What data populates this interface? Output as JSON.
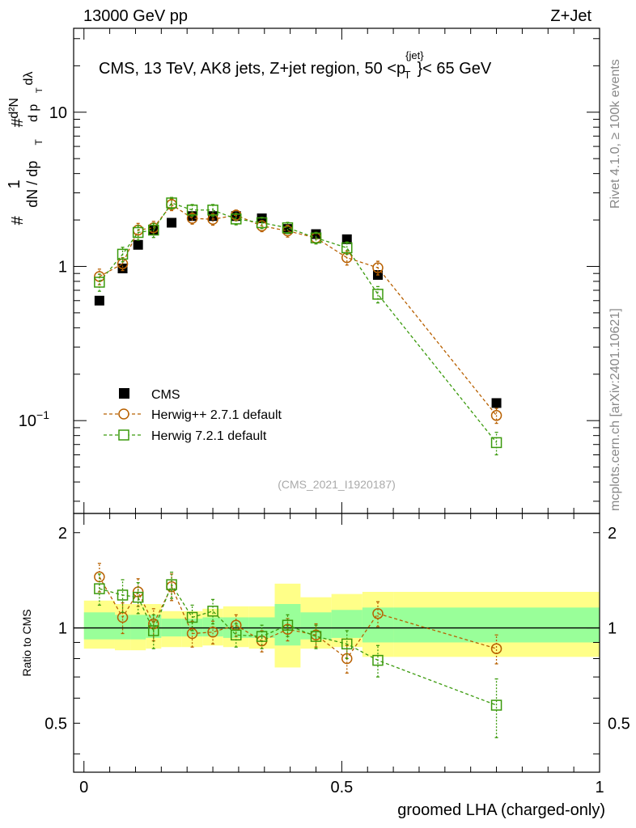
{
  "chart_data": {
    "type": "scatter",
    "header_left": "13000 GeV pp",
    "header_right": "Z+Jet",
    "title": "CMS, 13 TeV, AK8 jets, Z+jet region, 50 <p",
    "title_sup": "{jet}",
    "title_sub": "T",
    "title_tail": "}< 65 GeV",
    "analysis_id": "(CMS_2021_I1920187)",
    "side_rivet": "Rivet 4.1.0, ≥ 100k events",
    "side_mcplots": "mcplots.cern.ch [arXiv:2401.10621]",
    "xlabel": "groomed LHA (charged-only)",
    "ylabel_main": "(1/(dN/dp_T)) · d²N/(dp_T dλ)",
    "ylabel_ratio": "Ratio to CMS",
    "xlim": [
      -0.02,
      1.0
    ],
    "ylim_main": [
      0.025,
      35
    ],
    "ylim_ratio": [
      0.35,
      2.3
    ],
    "x_ticks": [
      {
        "v": 0,
        "label": "0"
      },
      {
        "v": 0.5,
        "label": "0.5"
      },
      {
        "v": 1,
        "label": "1"
      }
    ],
    "y_ticks_main": [
      {
        "v": 0.1,
        "label": "10",
        "sup": "−1"
      },
      {
        "v": 1,
        "label": "1",
        "sup": ""
      },
      {
        "v": 10,
        "label": "10",
        "sup": ""
      }
    ],
    "y_ticks_ratio": [
      {
        "v": 0.5,
        "label": "0.5"
      },
      {
        "v": 1,
        "label": "1"
      },
      {
        "v": 2,
        "label": "2"
      }
    ],
    "bins": [
      {
        "lo": 0.0,
        "hi": 0.06
      },
      {
        "lo": 0.06,
        "hi": 0.09
      },
      {
        "lo": 0.09,
        "hi": 0.12
      },
      {
        "lo": 0.12,
        "hi": 0.15
      },
      {
        "lo": 0.15,
        "hi": 0.19
      },
      {
        "lo": 0.19,
        "hi": 0.23
      },
      {
        "lo": 0.23,
        "hi": 0.27
      },
      {
        "lo": 0.27,
        "hi": 0.32
      },
      {
        "lo": 0.32,
        "hi": 0.37
      },
      {
        "lo": 0.37,
        "hi": 0.42
      },
      {
        "lo": 0.42,
        "hi": 0.48
      },
      {
        "lo": 0.48,
        "hi": 0.54
      },
      {
        "lo": 0.54,
        "hi": 0.6
      },
      {
        "lo": 0.6,
        "hi": 1.0
      }
    ],
    "band_outer": [
      1.22,
      1.19,
      1.19,
      1.19,
      1.13,
      1.13,
      1.15,
      1.17,
      1.17,
      1.38,
      1.25,
      1.28,
      1.3,
      1.3
    ],
    "band_outer_lo": [
      0.86,
      0.85,
      0.85,
      0.86,
      0.87,
      0.87,
      0.88,
      0.87,
      0.86,
      0.75,
      0.86,
      0.87,
      0.81,
      0.81
    ],
    "band_inner": [
      1.12,
      1.1,
      1.1,
      1.1,
      1.07,
      1.07,
      1.08,
      1.08,
      1.08,
      1.19,
      1.12,
      1.14,
      1.16,
      1.16
    ],
    "band_inner_lo": [
      0.92,
      0.92,
      0.92,
      0.93,
      0.94,
      0.94,
      0.94,
      0.93,
      0.93,
      0.88,
      0.92,
      0.93,
      0.9,
      0.9
    ],
    "series": [
      {
        "name": "CMS",
        "color": "#000000",
        "marker": "square-filled",
        "x": [
          0.03,
          0.075,
          0.105,
          0.135,
          0.17,
          0.21,
          0.25,
          0.295,
          0.345,
          0.395,
          0.45,
          0.51,
          0.57,
          0.8
        ],
        "y": [
          0.6,
          0.97,
          1.38,
          1.73,
          1.92,
          2.12,
          2.12,
          2.12,
          2.05,
          1.75,
          1.62,
          1.5,
          0.88,
          0.13
        ]
      },
      {
        "name": "Herwig++ 2.7.1 default",
        "color": "#b86000",
        "marker": "circle-open",
        "x": [
          0.03,
          0.075,
          0.105,
          0.135,
          0.17,
          0.21,
          0.25,
          0.295,
          0.345,
          0.395,
          0.45,
          0.51,
          0.57,
          0.8
        ],
        "y": [
          0.86,
          1.04,
          1.72,
          1.78,
          2.52,
          2.05,
          2.02,
          2.15,
          1.83,
          1.7,
          1.53,
          1.14,
          0.98,
          0.108
        ],
        "err": [
          0.1,
          0.1,
          0.18,
          0.18,
          0.22,
          0.17,
          0.17,
          0.17,
          0.15,
          0.15,
          0.13,
          0.12,
          0.1,
          0.012
        ],
        "ratio": [
          1.45,
          1.08,
          1.3,
          1.03,
          1.35,
          0.96,
          0.97,
          1.02,
          0.91,
          0.99,
          0.95,
          0.8,
          1.11,
          0.86
        ],
        "ratio_err": [
          0.15,
          0.12,
          0.13,
          0.12,
          0.13,
          0.09,
          0.08,
          0.08,
          0.07,
          0.08,
          0.08,
          0.08,
          0.1,
          0.09
        ]
      },
      {
        "name": "Herwig 7.2.1 default",
        "color": "#3a9a0c",
        "marker": "square-open",
        "x": [
          0.03,
          0.075,
          0.105,
          0.135,
          0.17,
          0.21,
          0.25,
          0.295,
          0.345,
          0.395,
          0.45,
          0.51,
          0.57,
          0.8
        ],
        "y": [
          0.79,
          1.2,
          1.66,
          1.72,
          2.58,
          2.32,
          2.32,
          2.03,
          1.92,
          1.78,
          1.53,
          1.32,
          0.66,
          0.072
        ],
        "err": [
          0.1,
          0.13,
          0.18,
          0.18,
          0.22,
          0.2,
          0.2,
          0.17,
          0.16,
          0.15,
          0.13,
          0.12,
          0.08,
          0.012
        ],
        "ratio": [
          1.33,
          1.27,
          1.25,
          0.98,
          1.37,
          1.08,
          1.13,
          0.95,
          0.94,
          1.02,
          0.94,
          0.89,
          0.79,
          0.57
        ],
        "ratio_err": [
          0.15,
          0.15,
          0.14,
          0.12,
          0.13,
          0.1,
          0.1,
          0.08,
          0.08,
          0.08,
          0.08,
          0.09,
          0.09,
          0.12
        ]
      }
    ]
  }
}
